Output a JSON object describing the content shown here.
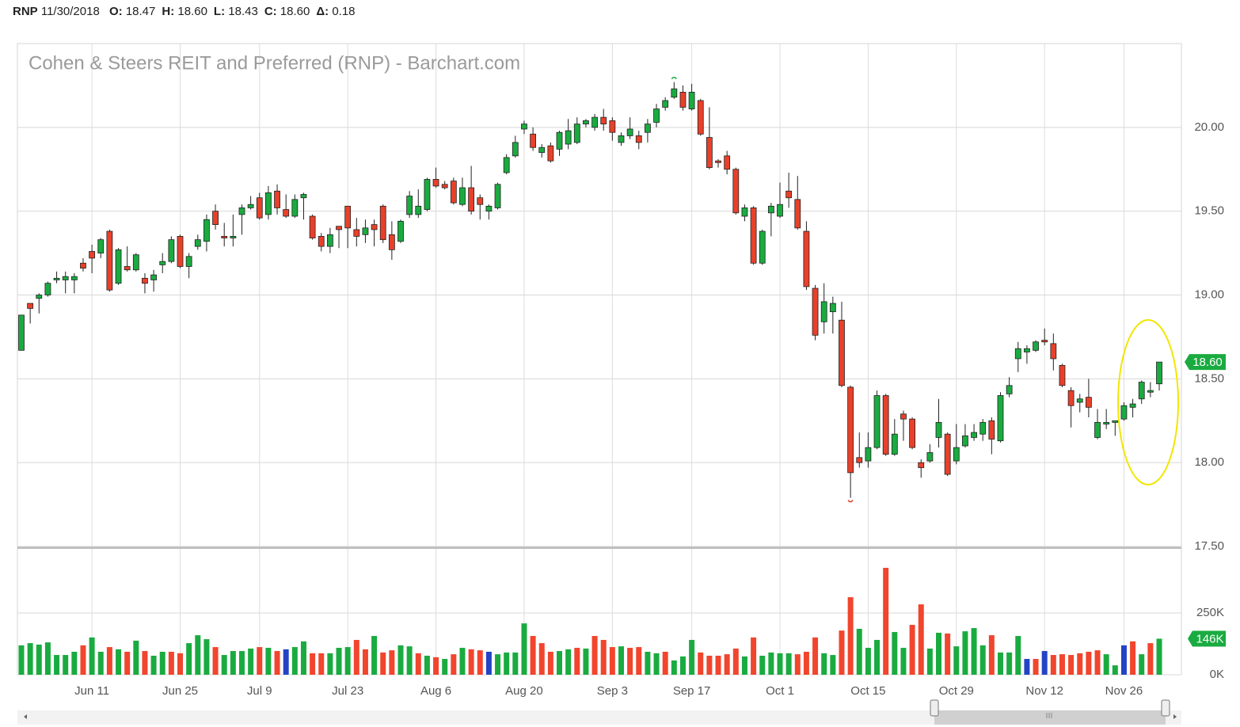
{
  "header": {
    "symbol": "RNP",
    "date": "11/30/2018",
    "fields": [
      {
        "label": "O:",
        "value": "18.47"
      },
      {
        "label": "H:",
        "value": "18.60"
      },
      {
        "label": "L:",
        "value": "18.43"
      },
      {
        "label": "C:",
        "value": "18.60"
      },
      {
        "label": "Δ:",
        "value": "0.18"
      }
    ]
  },
  "chart_data": [
    {
      "type": "candlestick",
      "title": "Cohen & Steers REIT and Preferred (RNP) - Barchart.com",
      "up_color": "#1aab40",
      "down_color": "#e8402a",
      "grid": true,
      "ylim": [
        17.5,
        20.5
      ],
      "yticks": [
        {
          "value": 17.5,
          "label": "17.50"
        },
        {
          "value": 18,
          "label": "18.00"
        },
        {
          "value": 18.5,
          "label": "18.50"
        },
        {
          "value": 19,
          "label": "19.00"
        },
        {
          "value": 19.5,
          "label": "19.50"
        },
        {
          "value": 20,
          "label": "20.00"
        }
      ],
      "last_value_label": "18.60",
      "open": [
        18.67,
        18.95,
        18.98,
        19.0,
        19.09,
        19.09,
        19.09,
        19.19,
        19.26,
        19.25,
        19.38,
        19.07,
        19.17,
        19.15,
        19.1,
        19.09,
        19.18,
        19.2,
        19.35,
        19.17,
        19.29,
        19.32,
        19.5,
        19.35,
        19.34,
        19.48,
        19.52,
        19.58,
        19.48,
        19.62,
        19.51,
        19.47,
        19.58,
        19.47,
        19.35,
        19.29,
        19.41,
        19.53,
        19.39,
        19.36,
        19.42,
        19.53,
        19.36,
        19.32,
        19.48,
        19.48,
        19.51,
        19.69,
        19.66,
        19.68,
        19.54,
        19.64,
        19.58,
        19.5,
        19.52,
        19.73,
        19.83,
        19.99,
        19.96,
        19.85,
        19.89,
        19.87,
        19.9,
        19.91,
        20.02,
        20.0,
        20.06,
        20.04,
        19.91,
        19.95,
        19.95,
        19.97,
        20.03,
        20.12,
        20.18,
        20.21,
        20.11,
        20.16,
        19.94,
        19.8,
        19.83,
        19.75,
        19.47,
        19.52,
        19.19,
        19.49,
        19.47,
        19.62,
        19.57,
        19.38,
        19.04,
        18.84,
        18.9,
        18.85,
        18.45,
        18.03,
        18.01,
        18.09,
        18.4,
        18.05,
        18.29,
        18.26,
        18.0,
        18.01,
        18.15,
        18.17,
        18.01,
        18.1,
        18.15,
        18.17,
        18.25,
        18.13,
        18.41,
        18.62,
        18.66,
        18.67,
        18.73,
        18.71,
        18.58,
        18.43,
        18.36,
        18.39,
        18.15,
        18.23,
        18.24,
        18.26,
        18.33,
        18.38,
        18.42,
        18.47
      ],
      "high": [
        18.88,
        18.95,
        19.01,
        19.08,
        19.14,
        19.14,
        19.13,
        19.22,
        19.3,
        19.34,
        19.39,
        19.28,
        19.29,
        19.25,
        19.13,
        19.15,
        19.25,
        19.35,
        19.36,
        19.25,
        19.36,
        19.48,
        19.54,
        19.43,
        19.48,
        19.54,
        19.59,
        19.61,
        19.65,
        19.66,
        19.6,
        19.6,
        19.61,
        19.48,
        19.37,
        19.4,
        19.41,
        19.53,
        19.46,
        19.45,
        19.45,
        19.54,
        19.44,
        19.45,
        19.62,
        19.63,
        19.7,
        19.76,
        19.68,
        19.7,
        19.7,
        19.77,
        19.6,
        19.54,
        19.67,
        19.84,
        19.95,
        20.04,
        20.0,
        19.9,
        19.91,
        19.98,
        20.05,
        20.06,
        20.05,
        20.08,
        20.11,
        20.06,
        19.97,
        20.06,
        19.98,
        20.05,
        20.14,
        20.18,
        20.27,
        20.25,
        20.26,
        20.17,
        20.12,
        19.81,
        19.86,
        19.76,
        19.54,
        19.53,
        19.39,
        19.55,
        19.67,
        19.73,
        19.71,
        19.44,
        19.06,
        19.07,
        18.99,
        18.96,
        18.46,
        18.18,
        18.18,
        18.43,
        18.41,
        18.26,
        18.31,
        18.27,
        18.02,
        18.11,
        18.38,
        18.18,
        18.23,
        18.23,
        18.23,
        18.26,
        18.27,
        18.42,
        18.51,
        18.72,
        18.7,
        18.73,
        18.8,
        18.77,
        18.59,
        18.45,
        18.41,
        18.5,
        18.32,
        18.32,
        18.25,
        18.36,
        18.38,
        18.49,
        18.48,
        18.6
      ],
      "low": [
        18.67,
        18.83,
        18.89,
        18.99,
        19.07,
        19.01,
        19.01,
        19.14,
        19.13,
        19.22,
        19.02,
        19.06,
        19.14,
        19.14,
        19.01,
        19.02,
        19.13,
        19.19,
        19.16,
        19.1,
        19.27,
        19.26,
        19.39,
        19.29,
        19.29,
        19.36,
        19.51,
        19.45,
        19.45,
        19.48,
        19.46,
        19.46,
        19.45,
        19.33,
        19.26,
        19.25,
        19.28,
        19.28,
        19.29,
        19.31,
        19.29,
        19.31,
        19.21,
        19.31,
        19.46,
        19.46,
        19.5,
        19.64,
        19.63,
        19.54,
        19.53,
        19.48,
        19.45,
        19.45,
        19.51,
        19.72,
        19.82,
        19.96,
        19.86,
        19.82,
        19.79,
        19.83,
        19.87,
        19.9,
        20.0,
        19.98,
        19.98,
        19.92,
        19.89,
        19.93,
        19.87,
        19.91,
        20.0,
        20.1,
        20.17,
        20.1,
        20.1,
        19.95,
        19.75,
        19.76,
        19.72,
        19.48,
        19.44,
        19.18,
        19.18,
        19.35,
        19.46,
        19.52,
        19.39,
        19.03,
        18.73,
        18.77,
        18.77,
        18.45,
        17.79,
        17.97,
        17.97,
        18.08,
        18.04,
        18.04,
        18.13,
        18.08,
        17.91,
        18.0,
        18.09,
        17.92,
        17.99,
        18.09,
        18.13,
        18.13,
        18.05,
        18.12,
        18.39,
        18.54,
        18.59,
        18.66,
        18.7,
        18.55,
        18.45,
        18.21,
        18.3,
        18.27,
        18.14,
        18.2,
        18.16,
        18.25,
        18.27,
        18.35,
        18.39,
        18.43
      ],
      "close": [
        18.88,
        18.92,
        19.0,
        19.07,
        19.1,
        19.11,
        19.11,
        19.16,
        19.22,
        19.33,
        19.03,
        19.27,
        19.15,
        19.24,
        19.07,
        19.12,
        19.2,
        19.33,
        19.17,
        19.23,
        19.33,
        19.45,
        19.42,
        19.34,
        19.35,
        19.52,
        19.54,
        19.46,
        19.61,
        19.52,
        19.47,
        19.57,
        19.6,
        19.34,
        19.29,
        19.36,
        19.39,
        19.4,
        19.35,
        19.4,
        19.39,
        19.33,
        19.27,
        19.44,
        19.59,
        19.53,
        19.69,
        19.65,
        19.64,
        19.55,
        19.64,
        19.5,
        19.54,
        19.53,
        19.66,
        19.82,
        19.91,
        20.02,
        19.88,
        19.88,
        19.8,
        19.97,
        19.98,
        20.02,
        20.04,
        20.06,
        20.02,
        19.97,
        19.95,
        19.99,
        19.91,
        20.02,
        20.11,
        20.16,
        20.23,
        20.12,
        20.21,
        19.96,
        19.76,
        19.79,
        19.75,
        19.49,
        19.52,
        19.19,
        19.38,
        19.53,
        19.54,
        19.58,
        19.4,
        19.05,
        18.76,
        18.96,
        18.95,
        18.46,
        17.94,
        18.0,
        18.09,
        18.4,
        18.05,
        18.17,
        18.26,
        18.09,
        17.97,
        18.06,
        18.24,
        17.93,
        18.09,
        18.16,
        18.18,
        18.24,
        18.14,
        18.4,
        18.46,
        18.68,
        18.68,
        18.72,
        18.72,
        18.62,
        18.46,
        18.34,
        18.38,
        18.33,
        18.24,
        18.24,
        18.25,
        18.34,
        18.35,
        18.48,
        18.43,
        18.6
      ]
    },
    {
      "type": "bar",
      "categories": [
        null,
        null,
        null,
        null,
        null,
        null,
        null,
        null,
        "Jun 11",
        null,
        null,
        null,
        null,
        null,
        null,
        null,
        null,
        null,
        "Jun 25",
        null,
        null,
        null,
        null,
        null,
        null,
        null,
        null,
        "Jul 9",
        null,
        null,
        null,
        null,
        null,
        null,
        null,
        null,
        null,
        "Jul 23",
        null,
        null,
        null,
        null,
        null,
        null,
        null,
        null,
        null,
        "Aug 6",
        null,
        null,
        null,
        null,
        null,
        null,
        null,
        null,
        null,
        "Aug 20",
        null,
        null,
        null,
        null,
        null,
        null,
        null,
        null,
        null,
        "Sep 3",
        null,
        null,
        null,
        null,
        null,
        null,
        null,
        null,
        "Sep 17",
        null,
        null,
        null,
        null,
        null,
        null,
        null,
        null,
        null,
        "Oct 1",
        null,
        null,
        null,
        null,
        null,
        null,
        null,
        null,
        null,
        "Oct 15",
        null,
        null,
        null,
        null,
        null,
        null,
        null,
        null,
        null,
        "Oct 29",
        null,
        null,
        null,
        null,
        null,
        null,
        null,
        null,
        null,
        "Nov 12",
        null,
        null,
        null,
        null,
        null,
        null,
        null,
        null,
        "Nov 26",
        null,
        null,
        null,
        null
      ],
      "values": [
        119000,
        128000,
        122000,
        131000,
        80000,
        80000,
        93000,
        119000,
        151000,
        93000,
        112000,
        103000,
        93000,
        138000,
        96000,
        77000,
        93000,
        93000,
        87000,
        128000,
        160000,
        144000,
        112000,
        80000,
        96000,
        96000,
        106000,
        112000,
        109000,
        96000,
        103000,
        112000,
        135000,
        87000,
        87000,
        87000,
        109000,
        112000,
        141000,
        103000,
        157000,
        90000,
        99000,
        119000,
        115000,
        87000,
        77000,
        71000,
        64000,
        83000,
        109000,
        103000,
        99000,
        93000,
        83000,
        90000,
        90000,
        208000,
        157000,
        128000,
        93000,
        96000,
        103000,
        109000,
        106000,
        157000,
        141000,
        112000,
        115000,
        109000,
        112000,
        93000,
        87000,
        93000,
        58000,
        74000,
        141000,
        90000,
        77000,
        77000,
        83000,
        106000,
        74000,
        151000,
        77000,
        90000,
        87000,
        87000,
        83000,
        93000,
        151000,
        87000,
        80000,
        179000,
        314000,
        186000,
        109000,
        141000,
        433000,
        173000,
        109000,
        202000,
        285000,
        106000,
        170000,
        167000,
        115000,
        176000,
        189000,
        119000,
        160000,
        90000,
        90000,
        157000,
        64000,
        64000,
        96000,
        80000,
        83000,
        80000,
        87000,
        93000,
        99000,
        83000,
        38000,
        119000,
        135000,
        83000,
        128000,
        146000
      ],
      "bar_colors": [
        "up",
        "up",
        "up",
        "up",
        "up",
        "up",
        "up",
        "down",
        "up",
        "up",
        "down",
        "up",
        "down",
        "up",
        "down",
        "up",
        "up",
        "down",
        "down",
        "up",
        "up",
        "up",
        "down",
        "up",
        "up",
        "up",
        "up",
        "down",
        "up",
        "down",
        "flat",
        "up",
        "up",
        "down",
        "down",
        "up",
        "up",
        "up",
        "down",
        "down",
        "up",
        "down",
        "down",
        "up",
        "up",
        "down",
        "up",
        "down",
        "up",
        "down",
        "up",
        "down",
        "down",
        "flat",
        "up",
        "up",
        "up",
        "up",
        "down",
        "down",
        "down",
        "up",
        "up",
        "down",
        "up",
        "down",
        "down",
        "down",
        "up",
        "down",
        "down",
        "up",
        "up",
        "down",
        "up",
        "up",
        "up",
        "down",
        "down",
        "down",
        "down",
        "down",
        "up",
        "down",
        "up",
        "up",
        "up",
        "up",
        "down",
        "down",
        "down",
        "up",
        "up",
        "down",
        "down",
        "up",
        "up",
        "up",
        "down",
        "up",
        "up",
        "down",
        "down",
        "up",
        "up",
        "down",
        "up",
        "up",
        "up",
        "up",
        "down",
        "up",
        "up",
        "up",
        "flat",
        "down",
        "flat",
        "down",
        "down",
        "down",
        "down",
        "down",
        "down",
        "up",
        "up",
        "flat",
        "down",
        "up",
        "down",
        "up"
      ],
      "palette": {
        "up": "#1aab40",
        "down": "#f1452d",
        "flat": "#2443c4"
      },
      "ylim": [
        0,
        510000
      ],
      "yticks": [
        {
          "value": 0,
          "label": "0K"
        },
        {
          "value": 250000,
          "label": "250K"
        }
      ],
      "last_value_label": "146K",
      "grid": true
    }
  ]
}
